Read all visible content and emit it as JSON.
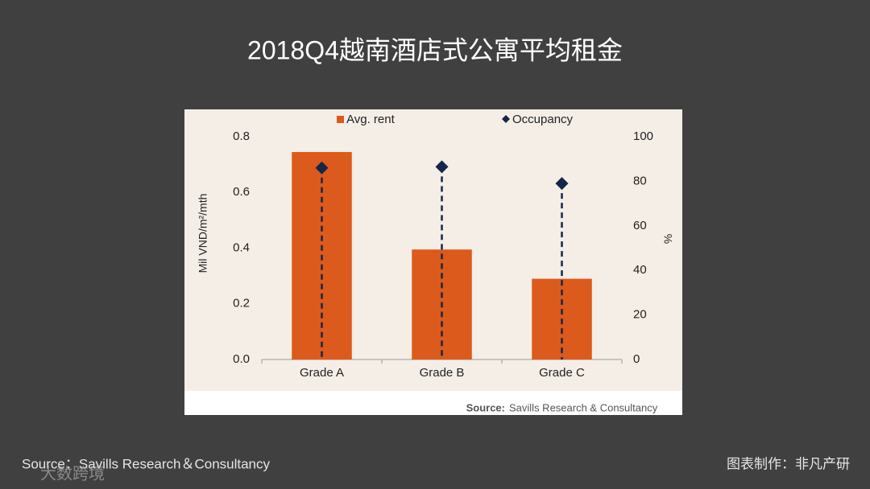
{
  "chart_data": {
    "type": "bar",
    "title": "2018Q4越南酒店式公寓平均租金",
    "categories": [
      "Grade A",
      "Grade B",
      "Grade C"
    ],
    "series": [
      {
        "name": "Avg. rent",
        "color": "#dc5a1c",
        "values": [
          0.745,
          0.395,
          0.29
        ]
      },
      {
        "name": "Occupancy",
        "color": "#14264a",
        "axis": "y2",
        "values": [
          86,
          86.5,
          79
        ]
      }
    ],
    "ylabel": "Mil VND/m²/mth",
    "y2label": "%",
    "ylim": [
      0,
      0.8
    ],
    "yticks": [
      {
        "value": 0,
        "label": "0.0"
      },
      0.2,
      0.4,
      0.6,
      0.8
    ],
    "y2lim": [
      0,
      100
    ],
    "y2ticks": [
      0,
      20,
      40,
      60,
      80,
      100
    ],
    "source_label": "Source:",
    "source": "Savills Research & Consultancy"
  },
  "footer": {
    "source": "Source：Savills Research＆Consultancy",
    "credit": "图表制作：非凡产研",
    "watermark": "大数跨境"
  }
}
